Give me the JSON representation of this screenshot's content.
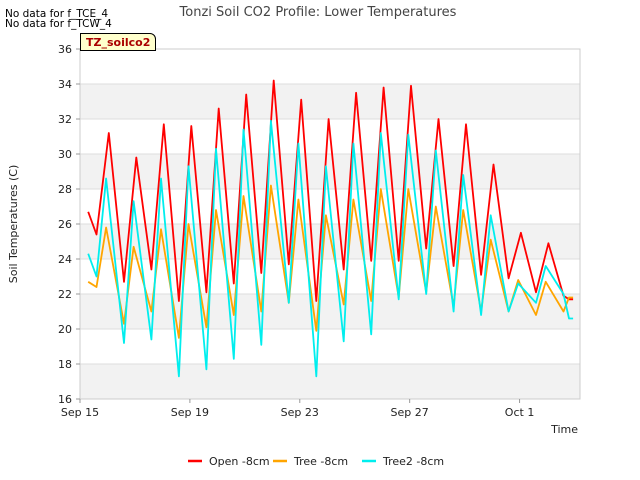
{
  "chart_data": {
    "type": "line",
    "title": "Tonzi Soil CO2 Profile: Lower Temperatures",
    "xlabel": "Time",
    "ylabel": "Soil Temperatures (C)",
    "ylim": [
      16,
      36
    ],
    "yticks": [
      "16",
      "18",
      "20",
      "22",
      "24",
      "26",
      "28",
      "30",
      "32",
      "34",
      "36"
    ],
    "xticks": [
      {
        "label": "Sep 15",
        "day": 15
      },
      {
        "label": "Sep 19",
        "day": 19
      },
      {
        "label": "Sep 23",
        "day": 23
      },
      {
        "label": "Sep 27",
        "day": 27
      },
      {
        "label": "Oct 1",
        "day": 31
      }
    ],
    "xlim_days": [
      15,
      33.2
    ],
    "grid": "horizontal bands",
    "legend_position": "bottom",
    "notes": [
      "No data for f_TCE_4",
      "No data for f_TCW_4"
    ],
    "site_tag": "TZ_soilco2",
    "series": [
      {
        "name": "Open -8cm",
        "color": "#ff0000",
        "min_day": [
          15.3,
          15.6,
          16.6,
          17.6,
          18.6,
          19.6,
          20.6,
          21.6,
          22.6,
          23.6,
          24.6,
          25.6,
          26.6,
          27.6,
          28.6,
          29.6,
          30.6,
          31.6,
          32.6,
          32.95
        ],
        "min": [
          26.7,
          25.4,
          22.7,
          23.4,
          21.6,
          22.1,
          22.6,
          23.2,
          23.7,
          21.6,
          23.4,
          23.9,
          23.9,
          24.6,
          23.6,
          23.1,
          22.9,
          22.1,
          21.9,
          21.7
        ],
        "peak_day": [
          16.05,
          17.05,
          18.05,
          19.05,
          20.05,
          21.05,
          22.05,
          23.05,
          24.05,
          25.05,
          26.05,
          27.05,
          28.05,
          29.05,
          30.05,
          31.05,
          32.05,
          32.8
        ],
        "peak": [
          31.2,
          29.8,
          31.7,
          31.6,
          32.6,
          33.4,
          34.2,
          33.1,
          32.0,
          33.5,
          33.8,
          33.9,
          32.0,
          31.7,
          29.4,
          25.5,
          24.9,
          21.7
        ]
      },
      {
        "name": "Tree -8cm",
        "color": "#ffa500",
        "min_day": [
          15.3,
          15.6,
          16.6,
          17.6,
          18.6,
          19.6,
          20.6,
          21.6,
          22.6,
          23.6,
          24.6,
          25.6,
          26.6,
          27.6,
          28.6,
          29.6,
          30.6,
          31.6,
          32.6,
          32.95
        ],
        "min": [
          22.7,
          22.4,
          20.3,
          21.0,
          19.5,
          20.1,
          20.8,
          21.0,
          21.5,
          19.9,
          21.4,
          21.6,
          21.8,
          22.1,
          21.3,
          21.0,
          21.0,
          20.8,
          21.0,
          21.8
        ],
        "peak_day": [
          15.95,
          16.95,
          17.95,
          18.95,
          19.95,
          20.95,
          21.95,
          22.95,
          23.95,
          24.95,
          25.95,
          26.95,
          27.95,
          28.95,
          29.95,
          30.95,
          31.95,
          32.8
        ],
        "peak": [
          25.8,
          24.7,
          25.7,
          26.0,
          26.8,
          27.6,
          28.2,
          27.4,
          26.5,
          27.4,
          28.0,
          28.0,
          27.0,
          26.8,
          25.1,
          22.8,
          22.7,
          21.8
        ]
      },
      {
        "name": "Tree2 -8cm",
        "color": "#00eeee",
        "min_day": [
          15.3,
          15.6,
          16.6,
          17.6,
          18.6,
          19.6,
          20.6,
          21.6,
          22.6,
          23.6,
          24.6,
          25.6,
          26.6,
          27.6,
          28.6,
          29.6,
          30.6,
          31.6,
          32.6,
          32.95
        ],
        "min": [
          24.3,
          23.0,
          19.2,
          19.4,
          17.3,
          17.7,
          18.3,
          19.1,
          21.5,
          17.3,
          19.3,
          19.7,
          21.7,
          22.0,
          21.0,
          20.8,
          21.0,
          21.5,
          22.0,
          20.6
        ],
        "peak_day": [
          15.95,
          16.95,
          17.95,
          18.95,
          19.95,
          20.95,
          21.95,
          22.95,
          23.95,
          24.95,
          25.95,
          26.95,
          27.95,
          28.95,
          29.95,
          30.95,
          31.95,
          32.8
        ],
        "peak": [
          28.6,
          27.3,
          28.6,
          29.3,
          30.3,
          31.4,
          31.9,
          30.6,
          29.3,
          30.6,
          31.2,
          31.1,
          30.2,
          28.8,
          26.5,
          22.6,
          23.6,
          20.6
        ]
      }
    ]
  }
}
